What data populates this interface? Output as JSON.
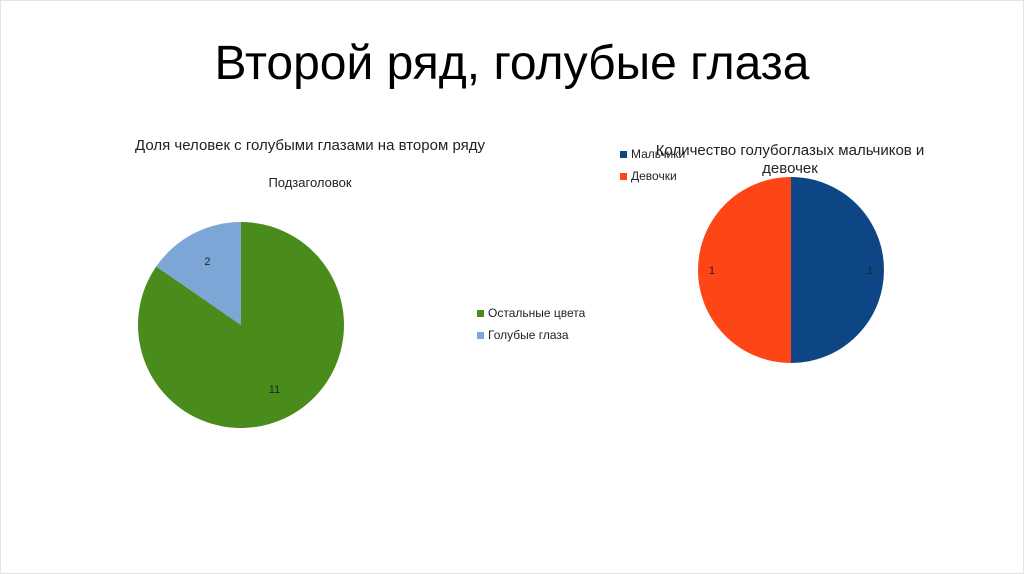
{
  "slide": {
    "title": "Второй ряд, голубые глаза"
  },
  "chart_data": [
    {
      "type": "pie",
      "title": "Доля человек с голубыми глазами на втором ряду",
      "subtitle": "Подзаголовок",
      "categories": [
        "Остальные цвета",
        "Голубые глаза"
      ],
      "values": [
        11,
        2
      ],
      "colors": [
        "#4a8c1c",
        "#7ba6d5"
      ],
      "legend": "right",
      "start": "top",
      "direction": "clockwise"
    },
    {
      "type": "pie",
      "title": "Количество голубоглазых мальчиков и девочек",
      "categories": [
        "Мальчики",
        "Девочки"
      ],
      "values": [
        1,
        1
      ],
      "colors": [
        "#0d4585",
        "#fe4515"
      ],
      "legend": "top-left",
      "start": "top",
      "direction": "clockwise"
    }
  ]
}
